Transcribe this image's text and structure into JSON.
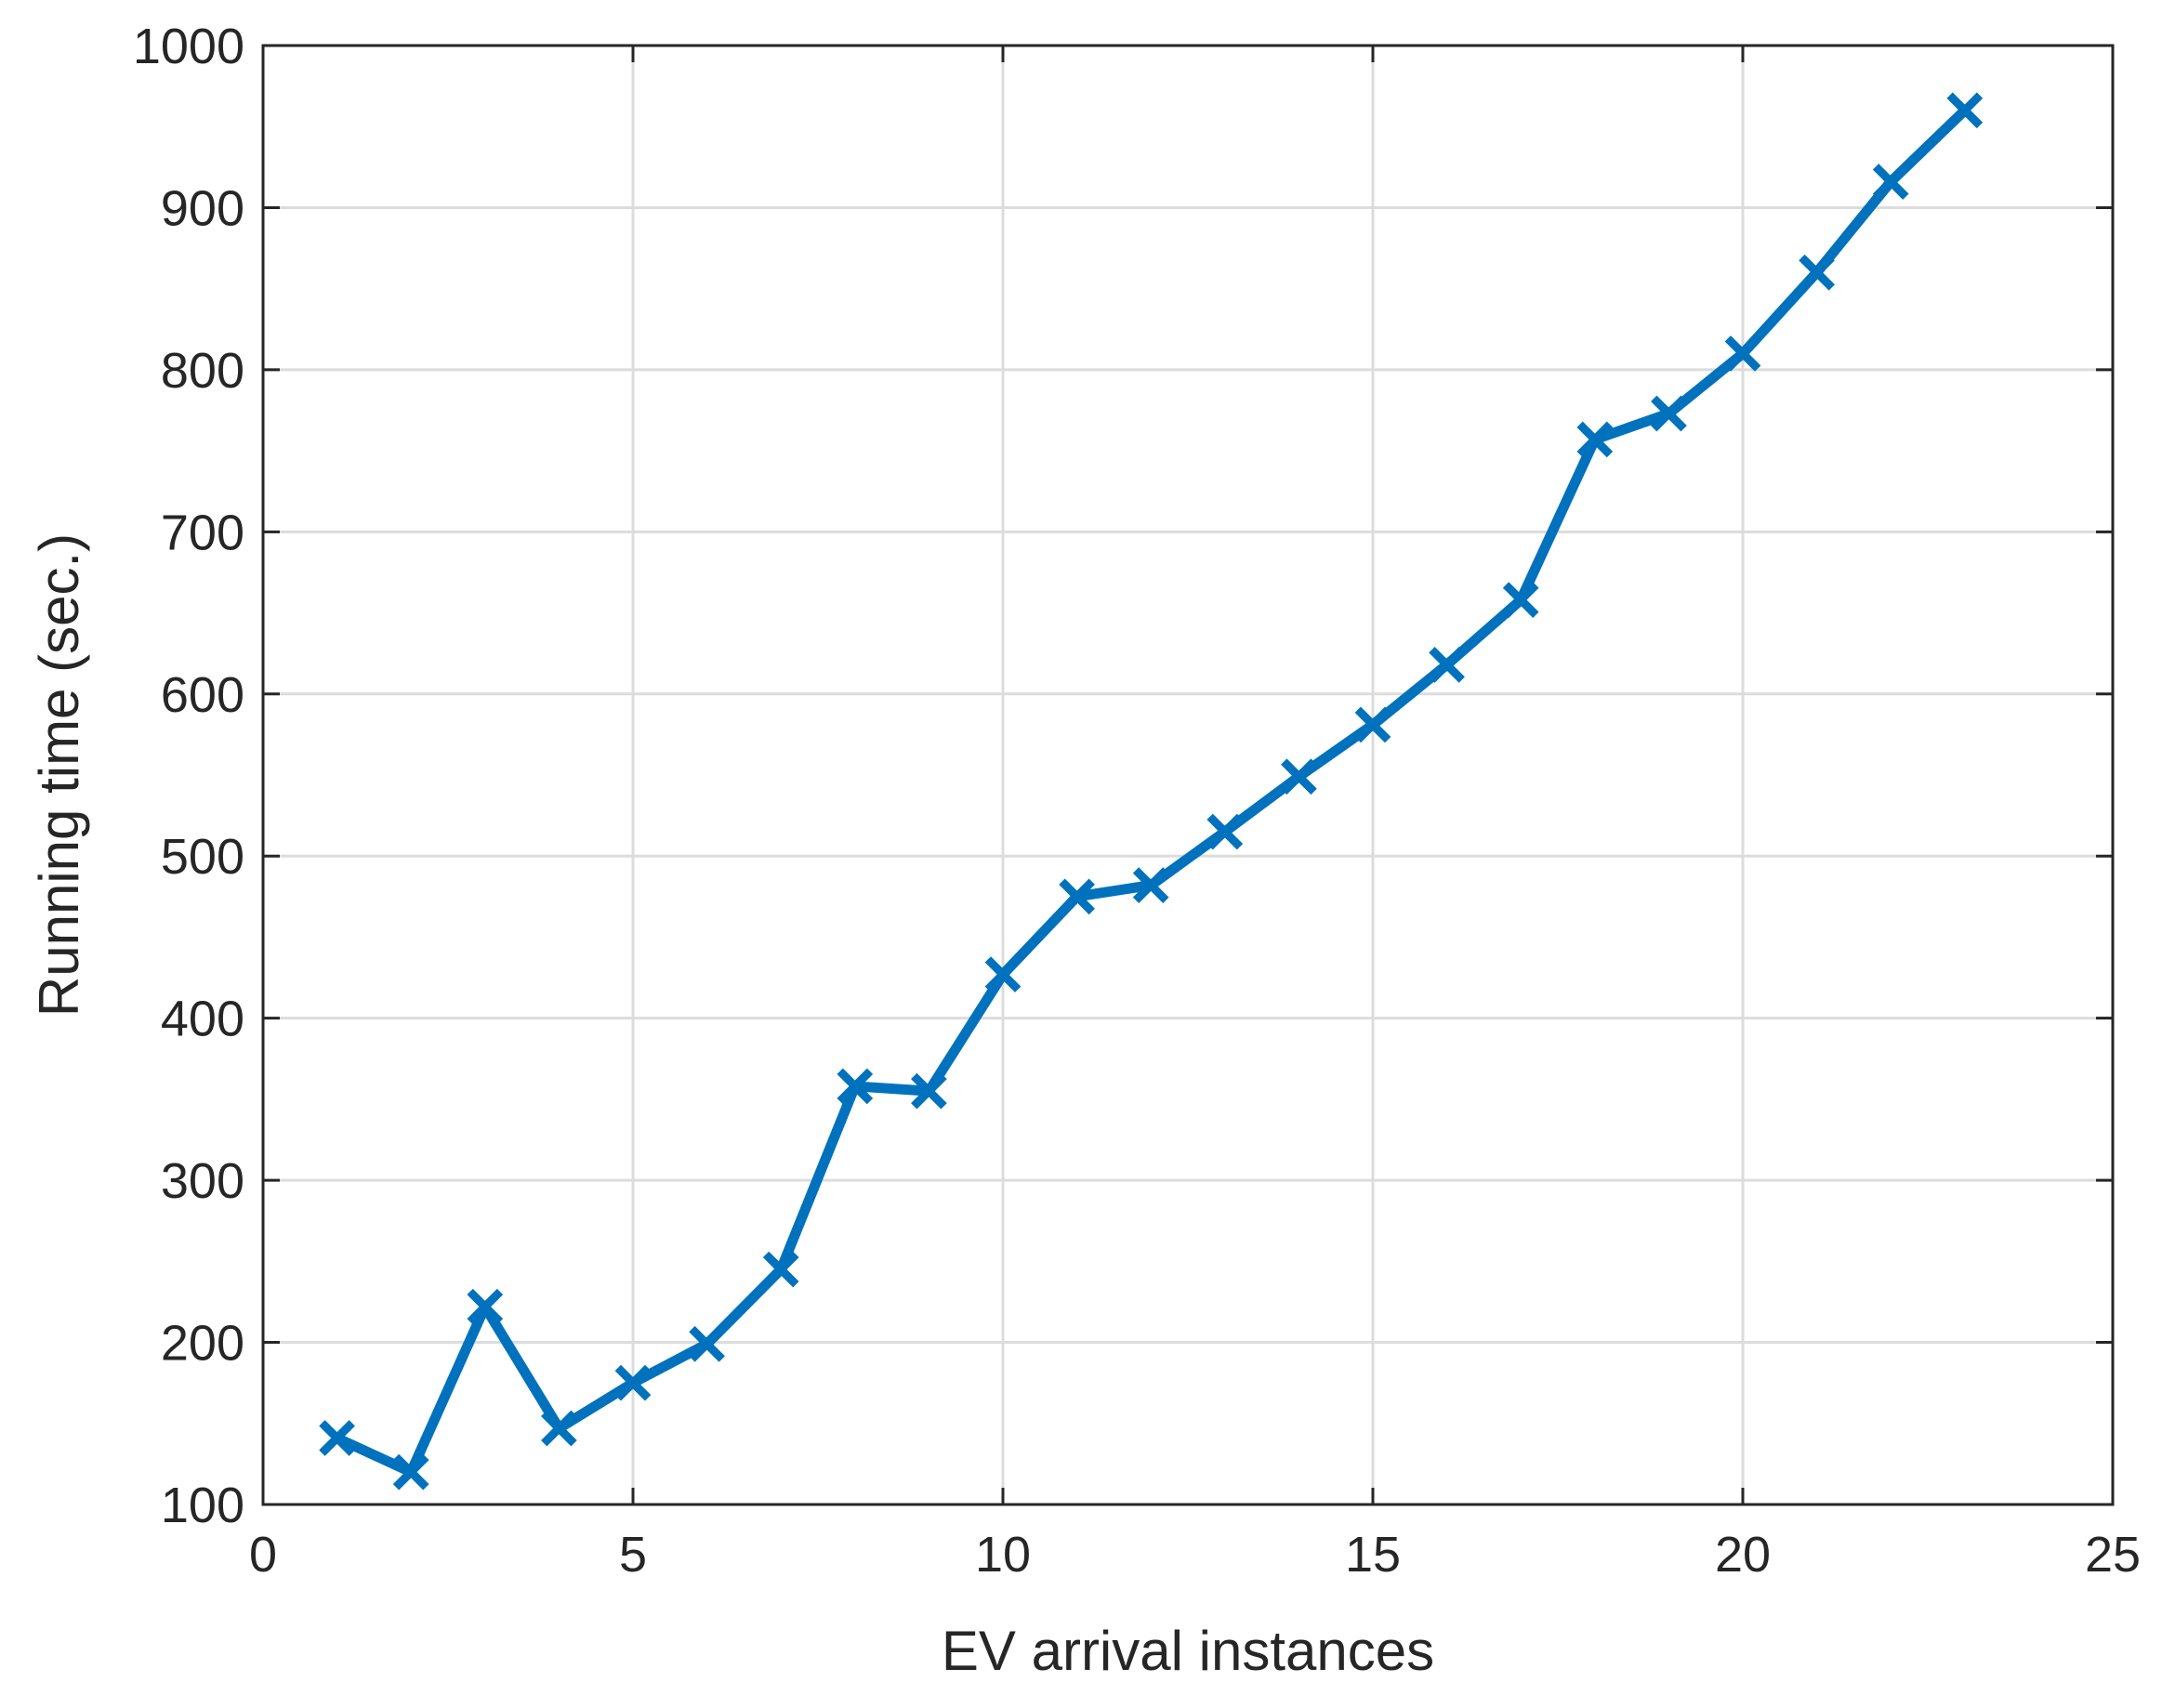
{
  "chart_data": {
    "type": "line",
    "title": "",
    "xlabel": "EV arrival instances",
    "ylabel": "Running time (sec.)",
    "xlim": [
      0,
      25
    ],
    "ylim": [
      100,
      1000
    ],
    "xticks": [
      0,
      5,
      10,
      15,
      20,
      25
    ],
    "yticks": [
      100,
      200,
      300,
      400,
      500,
      600,
      700,
      800,
      900,
      1000
    ],
    "grid": true,
    "marker": "x",
    "series_color": "#0072BD",
    "series": [
      {
        "x": [
          1,
          2,
          3,
          4,
          5,
          6,
          7,
          8,
          9,
          10,
          11,
          12,
          13,
          14,
          15,
          16,
          17,
          18,
          19,
          20,
          21,
          22,
          23
        ],
        "values": [
          141,
          120,
          222,
          147,
          175,
          199,
          245,
          358,
          355,
          427,
          475,
          482,
          515,
          549,
          581,
          618,
          658,
          757,
          773,
          810,
          860,
          916,
          960
        ]
      }
    ]
  }
}
